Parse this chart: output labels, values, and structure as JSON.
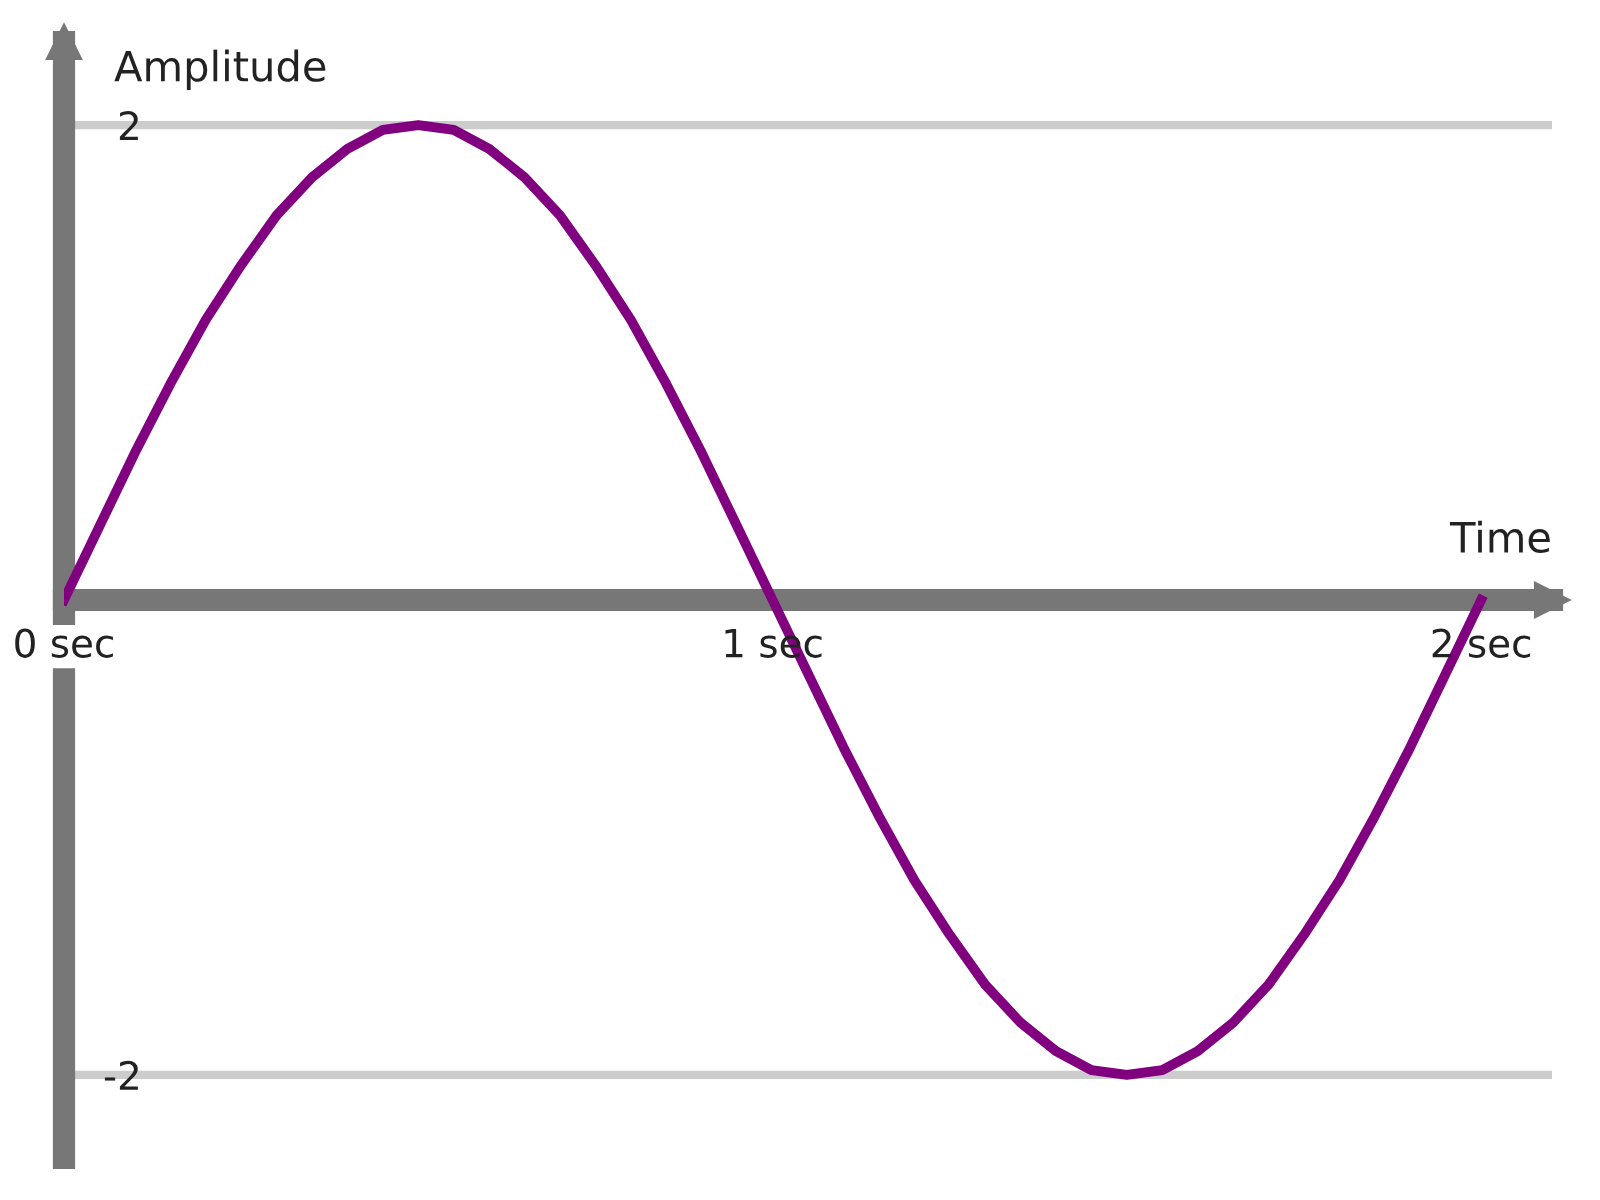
{
  "chart_data": {
    "type": "line",
    "xlabel": "Time",
    "ylabel": "Amplitude",
    "x": [
      0,
      0.05,
      0.1,
      0.15,
      0.2,
      0.25,
      0.3,
      0.35,
      0.4,
      0.45,
      0.5,
      0.55,
      0.6,
      0.65,
      0.7,
      0.75,
      0.8,
      0.85,
      0.9,
      0.95,
      1,
      1.05,
      1.1,
      1.15,
      1.2,
      1.25,
      1.3,
      1.35,
      1.4,
      1.45,
      1.5,
      1.55,
      1.6,
      1.65,
      1.7,
      1.75,
      1.8,
      1.85,
      1.9,
      1.95,
      2
    ],
    "series": [
      {
        "color": "#800080",
        "values": [
          0,
          0.31,
          0.62,
          0.91,
          1.18,
          1.41,
          1.62,
          1.78,
          1.9,
          1.98,
          2,
          1.98,
          1.9,
          1.78,
          1.62,
          1.41,
          1.18,
          0.91,
          0.62,
          0.31,
          0,
          -0.31,
          -0.62,
          -0.91,
          -1.18,
          -1.41,
          -1.62,
          -1.78,
          -1.9,
          -1.98,
          -2,
          -1.98,
          -1.9,
          -1.78,
          -1.62,
          -1.41,
          -1.18,
          -0.91,
          -0.62,
          -0.31,
          0
        ]
      }
    ],
    "xlim": [
      0,
      2.1
    ],
    "ylim": [
      -2.35,
      2.35
    ],
    "xticks": [
      {
        "value": 0,
        "label": "0 sec"
      },
      {
        "value": 1,
        "label": "1 sec"
      },
      {
        "value": 2,
        "label": "2 sec"
      }
    ],
    "yticks": [
      2,
      -2
    ],
    "grid": "y",
    "marker": "none",
    "line_style": "solid"
  }
}
